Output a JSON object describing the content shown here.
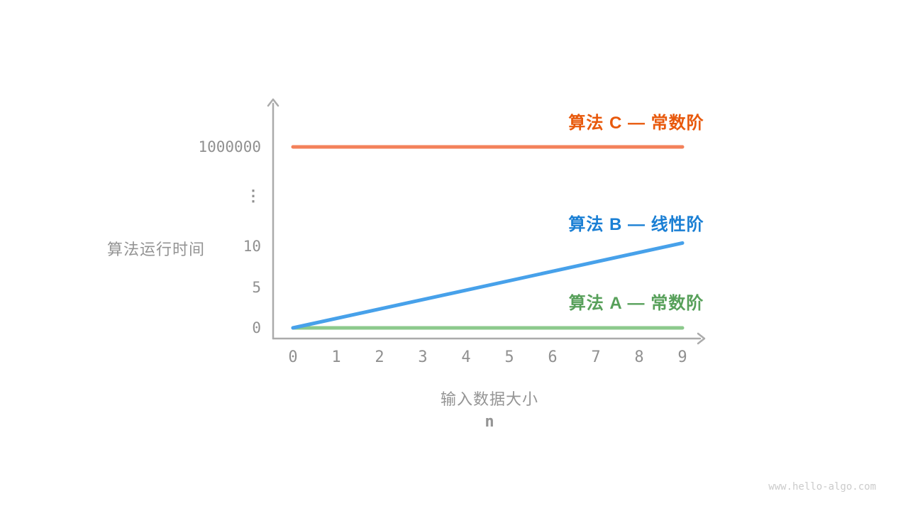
{
  "watermark": "www.hello-algo.com",
  "chart_data": {
    "type": "line",
    "title": "",
    "xlabel": "输入数据大小",
    "x_variable": "n",
    "ylabel": "算法运行时间",
    "x_ticks": [
      "0",
      "1",
      "2",
      "3",
      "4",
      "5",
      "6",
      "7",
      "8",
      "9"
    ],
    "y_ticks": [
      "1000000",
      "⋮",
      "10",
      "5",
      "0"
    ],
    "x_range": [
      0,
      9
    ],
    "y_axis_break": true,
    "grid": false,
    "axis_color": "#ababab",
    "tick_color": "#909090",
    "series": [
      {
        "name": "算法 A — 常数阶",
        "line_color": "#8cc98c",
        "label_color": "#57a05a",
        "points": [
          [
            0,
            0
          ],
          [
            9,
            0
          ]
        ]
      },
      {
        "name": "算法 B — 线性阶",
        "line_color": "#47a1ea",
        "label_color": "#1a7fd4",
        "points": [
          [
            0,
            0
          ],
          [
            9,
            10.4
          ]
        ]
      },
      {
        "name": "算法 C — 常数阶",
        "line_color": "#f3815a",
        "label_color": "#e8590c",
        "points": [
          [
            0,
            1000000
          ],
          [
            9,
            1000000
          ]
        ]
      }
    ]
  }
}
